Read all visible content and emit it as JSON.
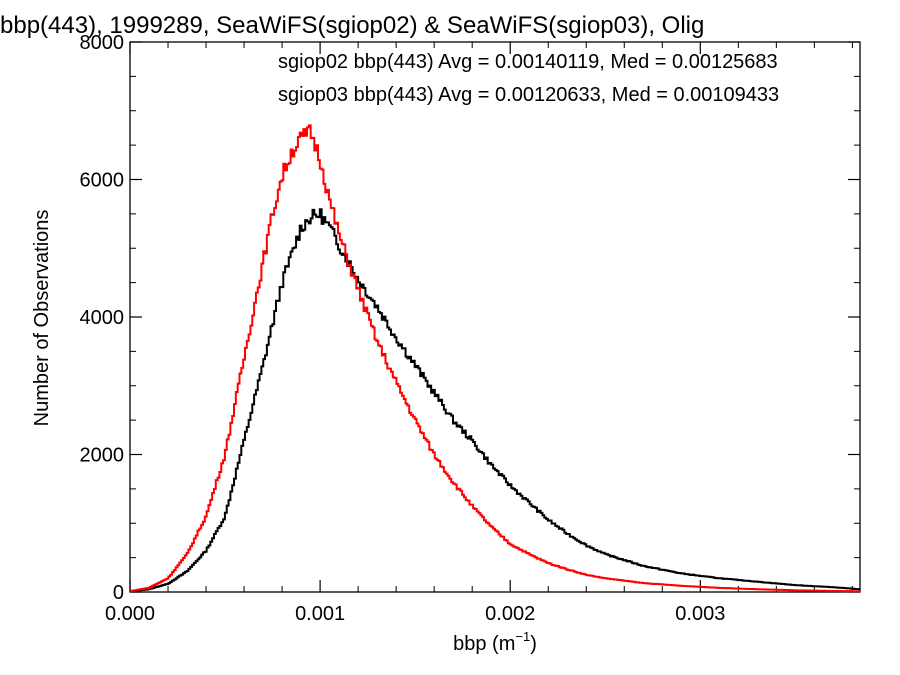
{
  "chart_data": {
    "type": "line",
    "title": "bbp(443), 1999289, SeaWiFS(sgiop02) & SeaWiFS(sgiop03), Olig",
    "xlabel_main": "bbp (m",
    "xlabel_sup": "−1",
    "xlabel_close": ")",
    "ylabel": "Number of Observations",
    "xlim": [
      0.0,
      0.00384
    ],
    "ylim": [
      0,
      8000
    ],
    "x_ticks": [
      {
        "value": 0.0,
        "label": "0.000"
      },
      {
        "value": 0.001,
        "label": "0.001"
      },
      {
        "value": 0.002,
        "label": "0.002"
      },
      {
        "value": 0.003,
        "label": "0.003"
      }
    ],
    "y_ticks": [
      {
        "value": 0,
        "label": "0"
      },
      {
        "value": 2000,
        "label": "2000"
      },
      {
        "value": 4000,
        "label": "4000"
      },
      {
        "value": 6000,
        "label": "6000"
      },
      {
        "value": 8000,
        "label": "8000"
      }
    ],
    "annotations": [
      {
        "text": "sgiop02 bbp(443) Avg = 0.00140119, Med = 0.00125683",
        "color": "#000000"
      },
      {
        "text": "sgiop03 bbp(443) Avg = 0.00120633, Med = 0.00109433",
        "color": "#ff0000"
      }
    ],
    "series": [
      {
        "color": "#000000",
        "x": [
          0.0,
          0.0001,
          0.0002,
          0.0003,
          0.0004,
          0.0005,
          0.0006,
          0.0007,
          0.00075,
          0.0008,
          0.00085,
          0.0009,
          0.00095,
          0.001,
          0.00105,
          0.0011,
          0.0012,
          0.0013,
          0.0014,
          0.0015,
          0.0016,
          0.0017,
          0.0018,
          0.0019,
          0.002,
          0.0021,
          0.0022,
          0.0023,
          0.0024,
          0.0025,
          0.0027,
          0.0029,
          0.0031,
          0.0033,
          0.0035,
          0.0037,
          0.00384
        ],
        "y": [
          10,
          40,
          120,
          300,
          600,
          1100,
          2200,
          3300,
          3900,
          4500,
          4900,
          5300,
          5450,
          5500,
          5300,
          5050,
          4550,
          4150,
          3700,
          3300,
          2900,
          2500,
          2200,
          1850,
          1550,
          1300,
          1050,
          850,
          680,
          550,
          380,
          270,
          200,
          150,
          100,
          70,
          40
        ]
      },
      {
        "color": "#ff0000",
        "x": [
          0.0,
          0.0001,
          0.0002,
          0.0003,
          0.0004,
          0.0005,
          0.0006,
          0.0007,
          0.00075,
          0.0008,
          0.00085,
          0.0009,
          0.00095,
          0.001,
          0.00105,
          0.0011,
          0.0012,
          0.0013,
          0.0014,
          0.0015,
          0.0016,
          0.0017,
          0.0018,
          0.0019,
          0.002,
          0.0021,
          0.0022,
          0.0023,
          0.0024,
          0.0025,
          0.0027,
          0.0029,
          0.0031,
          0.0033,
          0.0035,
          0.0037,
          0.00384
        ],
        "y": [
          10,
          60,
          200,
          550,
          1100,
          2000,
          3400,
          4800,
          5500,
          6050,
          6400,
          6600,
          6700,
          6300,
          5700,
          5200,
          4400,
          3650,
          3050,
          2500,
          2000,
          1600,
          1250,
          950,
          700,
          550,
          420,
          330,
          250,
          200,
          130,
          90,
          60,
          40,
          25,
          15,
          10
        ]
      }
    ]
  }
}
